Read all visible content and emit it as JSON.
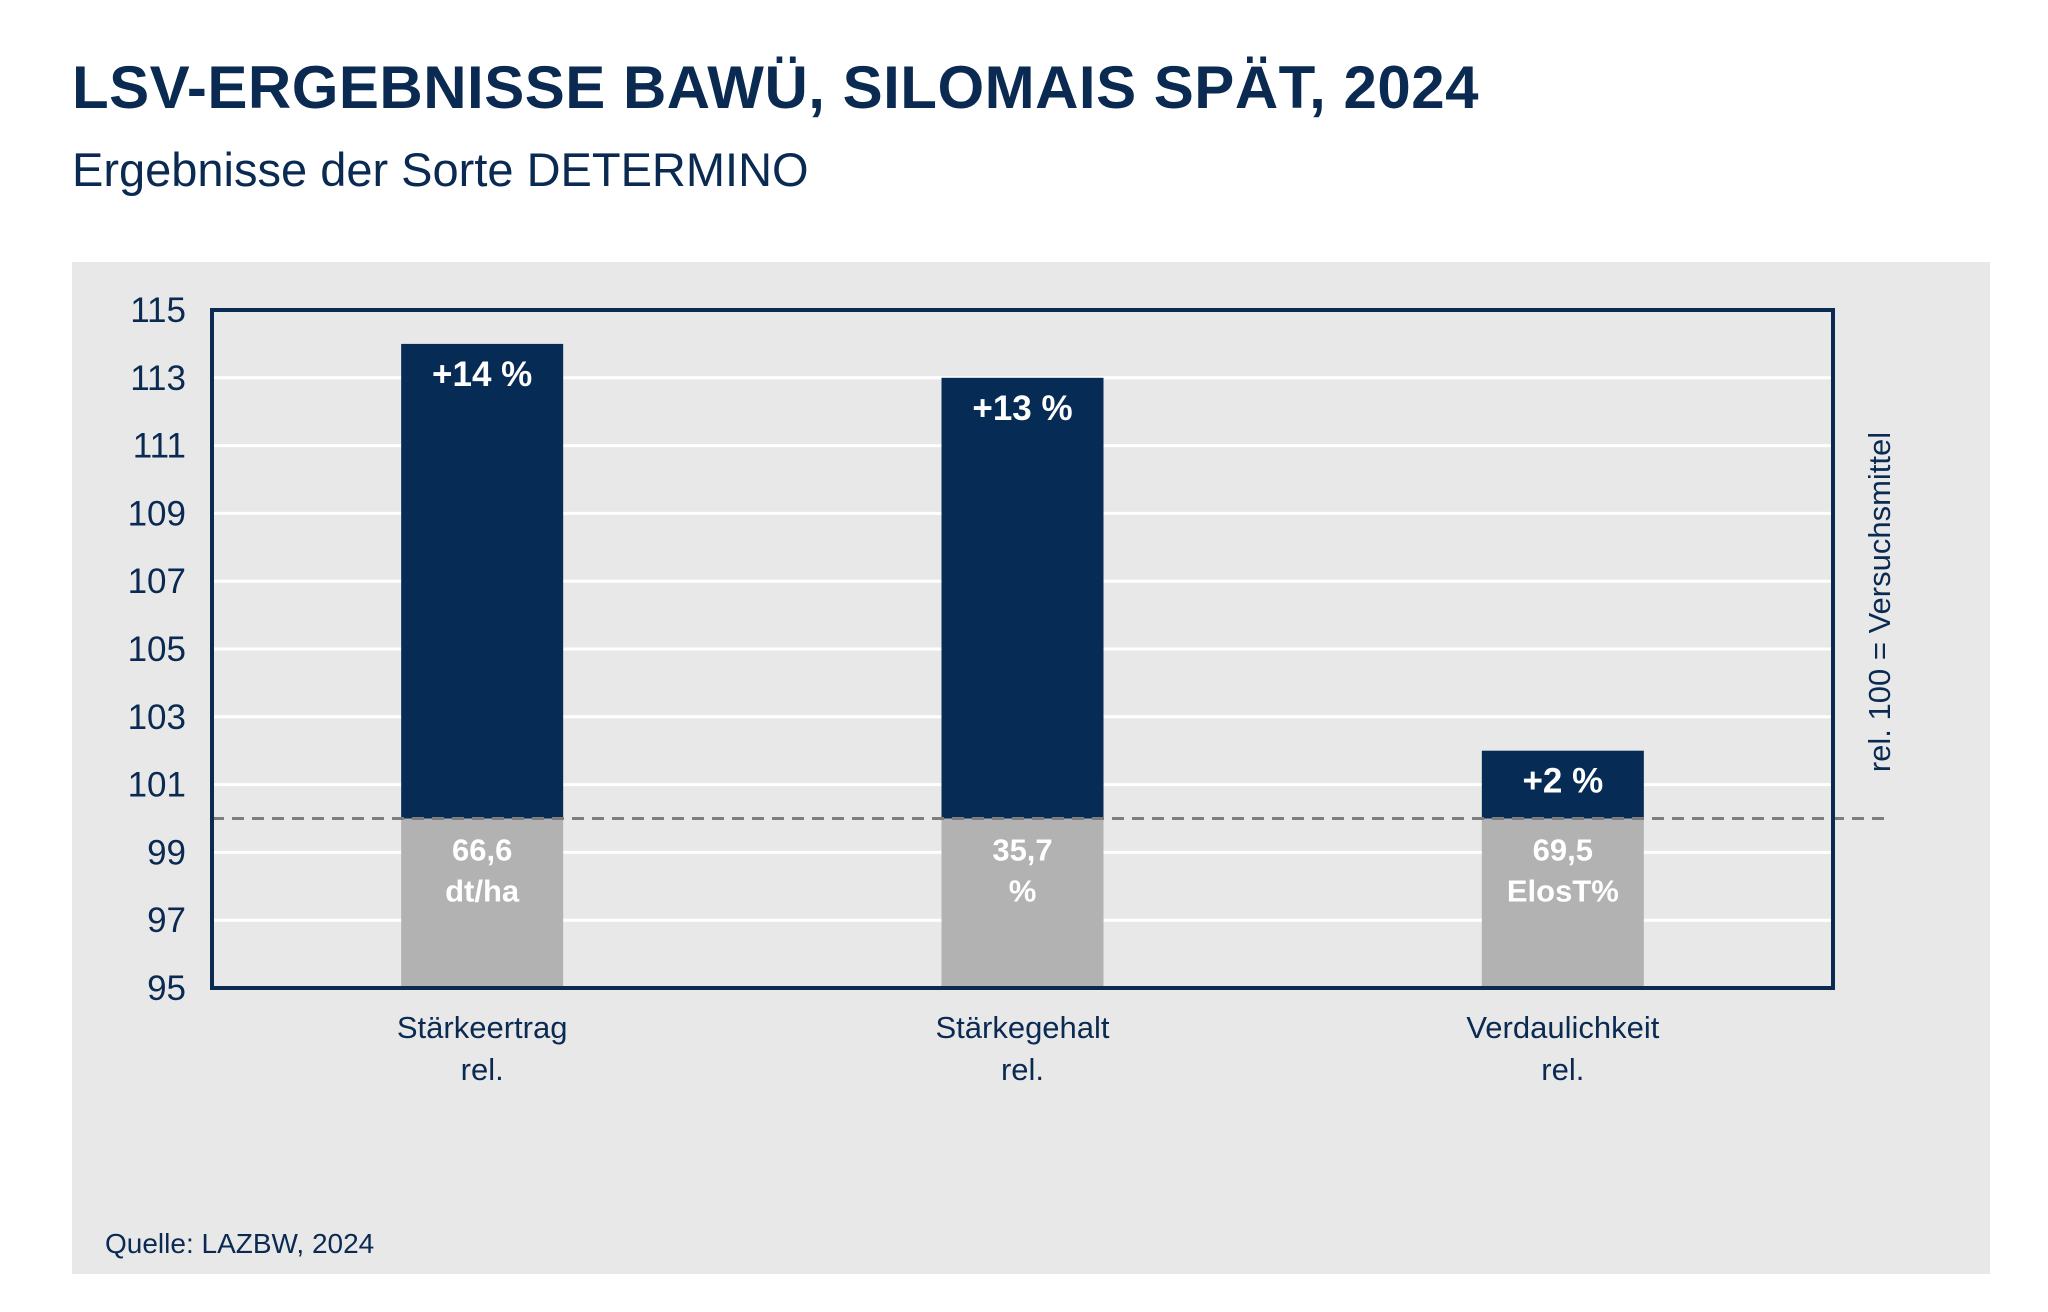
{
  "header": {
    "title": "LSV-ERGEBNISSE BAWÜ, SILOMAIS SPÄT, 2024",
    "subtitle": "Ergebnisse der Sorte DETERMINO"
  },
  "footer": {
    "source": "Quelle: LAZBW, 2024"
  },
  "colors": {
    "bar": "#062b55",
    "base": "#b2b2b2",
    "frame": "#0a2a52",
    "panel": "#e8e8e8",
    "text": "#0a2a52",
    "gridline": "#ffffff",
    "reference": "#7d7d7d"
  },
  "chart_data": {
    "type": "bar",
    "title": "LSV-ERGEBNISSE BAWÜ, SILOMAIS SPÄT, 2024",
    "subtitle": "Ergebnisse der Sorte DETERMINO",
    "ylim": [
      95,
      115
    ],
    "yticks": [
      95,
      97,
      99,
      101,
      103,
      105,
      107,
      109,
      111,
      113,
      115
    ],
    "reference": {
      "value": 100,
      "label": "rel. 100 = Versuchsmittel"
    },
    "grid": true,
    "categories": [
      [
        "Stärkeertrag",
        "rel."
      ],
      [
        "Stärkegehalt",
        "rel."
      ],
      [
        "Verdaulichkeit",
        "rel."
      ]
    ],
    "values": [
      114,
      113,
      102
    ],
    "value_labels": [
      "+14 %",
      "+13 %",
      "+2 %"
    ],
    "absolute_labels": [
      [
        "66,6",
        "dt/ha"
      ],
      [
        "35,7",
        "%"
      ],
      [
        "69,5",
        "ElosT%"
      ]
    ]
  }
}
